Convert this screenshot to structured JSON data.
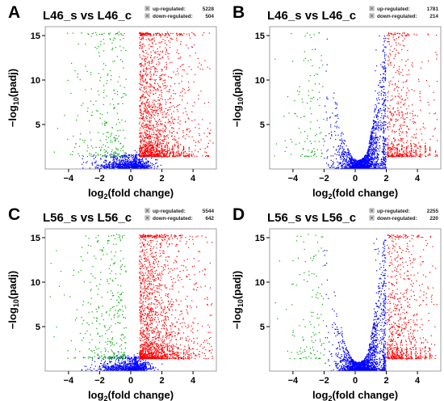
{
  "chart_data": [
    {
      "panel": "A",
      "type": "scatter",
      "title": "L46_s vs L46_c",
      "xlabel": "log2(fold change)",
      "ylabel": "−log10(padj)",
      "xticks": [
        -4,
        -2,
        0,
        2,
        4
      ],
      "yticks": [
        5,
        10,
        15
      ],
      "xlim": [
        -5.5,
        5.5
      ],
      "ylim": [
        0,
        16
      ],
      "grid": false,
      "legend_position": "top-right",
      "legend": [
        {
          "label": "up-regulated:",
          "count": "5228",
          "color": "#ff0000"
        },
        {
          "label": "down-regulated:",
          "count": "504",
          "color": "#00aa00"
        }
      ],
      "series": [
        {
          "name": "up-regulated",
          "color": "#ff0000",
          "count": 5228
        },
        {
          "name": "down-regulated",
          "color": "#00aa00",
          "count": 504
        },
        {
          "name": "",
          "color": "#0000ff"
        }
      ],
      "thresholds": {
        "log2fc": 0,
        "padj_y": 1.3
      }
    },
    {
      "panel": "B",
      "type": "scatter",
      "title": "L46_s vs L46_c",
      "xlabel": "log2(fold change)",
      "ylabel": "−log10(padj)",
      "xticks": [
        -4,
        -2,
        0,
        2,
        4
      ],
      "yticks": [
        5,
        10,
        15
      ],
      "xlim": [
        -5.5,
        5.5
      ],
      "ylim": [
        0,
        16
      ],
      "grid": false,
      "legend_position": "top-right",
      "legend": [
        {
          "label": "up-regulated:",
          "count": "1781",
          "color": "#ff0000"
        },
        {
          "label": "down-regulated:",
          "count": "214",
          "color": "#00aa00"
        }
      ],
      "series": [
        {
          "name": "up-regulated",
          "color": "#ff0000",
          "count": 1781
        },
        {
          "name": "down-regulated",
          "color": "#00aa00",
          "count": 214
        },
        {
          "name": "",
          "color": "#0000ff"
        }
      ],
      "thresholds": {
        "log2fc": 2,
        "padj_y": 1.3
      }
    },
    {
      "panel": "C",
      "type": "scatter",
      "title": "L56_s vs L56_c",
      "xlabel": "log2(fold change)",
      "ylabel": "−log10(padj)",
      "xticks": [
        -4,
        -2,
        0,
        2,
        4
      ],
      "yticks": [
        5,
        10,
        15
      ],
      "xlim": [
        -5.5,
        5.5
      ],
      "ylim": [
        0,
        16
      ],
      "grid": false,
      "legend_position": "top-right",
      "legend": [
        {
          "label": "up-regulated:",
          "count": "5544",
          "color": "#ff0000"
        },
        {
          "label": "down-regulated:",
          "count": "642",
          "color": "#00aa00"
        }
      ],
      "series": [
        {
          "name": "up-regulated",
          "color": "#ff0000",
          "count": 5544
        },
        {
          "name": "down-regulated",
          "color": "#00aa00",
          "count": 642
        },
        {
          "name": "",
          "color": "#0000ff"
        }
      ],
      "thresholds": {
        "log2fc": 0,
        "padj_y": 1.3
      }
    },
    {
      "panel": "D",
      "type": "scatter",
      "title": "L56_s vs L56_c",
      "xlabel": "log2(fold change)",
      "ylabel": "−log10(padj)",
      "xticks": [
        -4,
        -2,
        0,
        2,
        4
      ],
      "yticks": [
        5,
        10,
        15
      ],
      "xlim": [
        -5.5,
        5.5
      ],
      "ylim": [
        0,
        16
      ],
      "grid": false,
      "legend_position": "top-right",
      "legend": [
        {
          "label": "up-regulated:",
          "count": "2255",
          "color": "#ff0000"
        },
        {
          "label": "down-regulated:",
          "count": "220",
          "color": "#00aa00"
        }
      ],
      "series": [
        {
          "name": "up-regulated",
          "color": "#ff0000",
          "count": 2255
        },
        {
          "name": "down-regulated",
          "color": "#00aa00",
          "count": 220
        },
        {
          "name": "",
          "color": "#0000ff"
        }
      ],
      "thresholds": {
        "log2fc": 2,
        "padj_y": 1.3
      }
    }
  ]
}
